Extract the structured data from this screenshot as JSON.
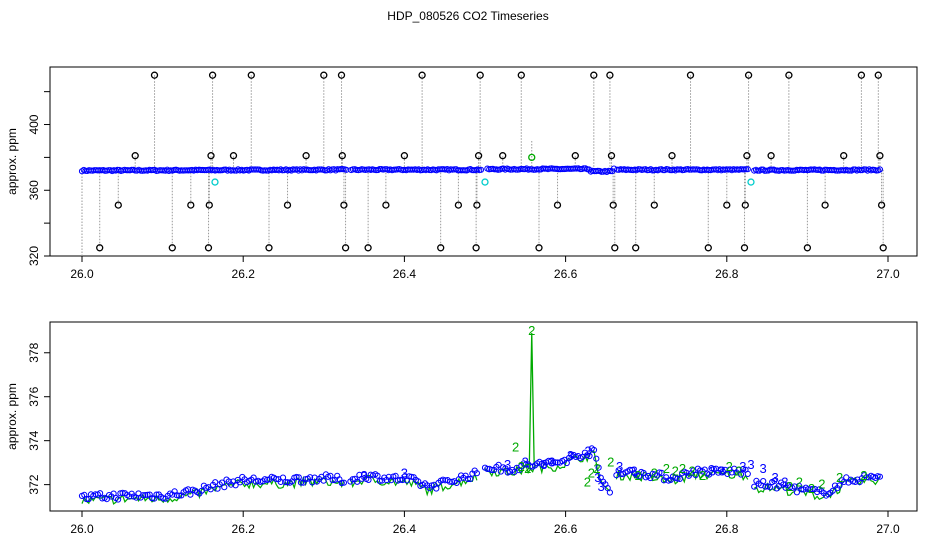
{
  "title": "HDP_080526  CO2 Timeseries",
  "colors": {
    "series_blue": "#0000ff",
    "series_green": "#00aa00",
    "cyan": "#00cccc",
    "black": "#000000",
    "drop_line": "#999999"
  },
  "chart_data": [
    {
      "type": "scatter",
      "ylabel": "approx. ppm",
      "xlim": [
        26.0,
        27.0
      ],
      "ylim": [
        320,
        435
      ],
      "x_ticks": [
        "26.0",
        "26.2",
        "26.4",
        "26.6",
        "26.8",
        "27.0"
      ],
      "y_ticks": [
        "320",
        "360",
        "400"
      ],
      "y_tick_values": [
        320,
        340,
        360,
        380,
        400,
        420
      ],
      "baseline_segments": [
        {
          "x0": 26.0,
          "x1": 26.328,
          "y0": 372,
          "y1": 372.5
        },
        {
          "x0": 26.334,
          "x1": 26.495,
          "y0": 372.5,
          "y1": 372.5
        },
        {
          "x0": 26.503,
          "x1": 26.66,
          "y0": 372.8,
          "y1": 373
        },
        {
          "x0": 26.664,
          "x1": 26.826,
          "y0": 372.5,
          "y1": 372.5
        },
        {
          "x0": 26.834,
          "x1": 26.99,
          "y0": 372.2,
          "y1": 372.4
        }
      ],
      "cyan_points": [
        {
          "x": 26.165,
          "y": 365
        },
        {
          "x": 26.5,
          "y": 365
        },
        {
          "x": 26.83,
          "y": 365
        }
      ],
      "green_points": [
        {
          "x": 26.558,
          "y": 380
        }
      ],
      "outliers": [
        {
          "x": 26.022,
          "y": 325
        },
        {
          "x": 26.045,
          "y": 351
        },
        {
          "x": 26.066,
          "y": 381
        },
        {
          "x": 26.09,
          "y": 430
        },
        {
          "x": 26.112,
          "y": 325
        },
        {
          "x": 26.135,
          "y": 351
        },
        {
          "x": 26.157,
          "y": 325
        },
        {
          "x": 26.158,
          "y": 351
        },
        {
          "x": 26.16,
          "y": 381
        },
        {
          "x": 26.162,
          "y": 430
        },
        {
          "x": 26.188,
          "y": 381
        },
        {
          "x": 26.21,
          "y": 430
        },
        {
          "x": 26.232,
          "y": 325
        },
        {
          "x": 26.255,
          "y": 351
        },
        {
          "x": 26.278,
          "y": 381
        },
        {
          "x": 26.3,
          "y": 430
        },
        {
          "x": 26.322,
          "y": 430
        },
        {
          "x": 26.323,
          "y": 381
        },
        {
          "x": 26.325,
          "y": 351
        },
        {
          "x": 26.327,
          "y": 325
        },
        {
          "x": 26.355,
          "y": 325
        },
        {
          "x": 26.377,
          "y": 351
        },
        {
          "x": 26.4,
          "y": 381
        },
        {
          "x": 26.422,
          "y": 430
        },
        {
          "x": 26.445,
          "y": 325
        },
        {
          "x": 26.467,
          "y": 351
        },
        {
          "x": 26.489,
          "y": 325
        },
        {
          "x": 26.49,
          "y": 351
        },
        {
          "x": 26.492,
          "y": 381
        },
        {
          "x": 26.494,
          "y": 430
        },
        {
          "x": 26.522,
          "y": 381
        },
        {
          "x": 26.545,
          "y": 430
        },
        {
          "x": 26.567,
          "y": 325
        },
        {
          "x": 26.59,
          "y": 351
        },
        {
          "x": 26.612,
          "y": 381
        },
        {
          "x": 26.635,
          "y": 430
        },
        {
          "x": 26.655,
          "y": 430
        },
        {
          "x": 26.657,
          "y": 381
        },
        {
          "x": 26.659,
          "y": 351
        },
        {
          "x": 26.661,
          "y": 325
        },
        {
          "x": 26.687,
          "y": 325
        },
        {
          "x": 26.71,
          "y": 351
        },
        {
          "x": 26.732,
          "y": 381
        },
        {
          "x": 26.755,
          "y": 430
        },
        {
          "x": 26.777,
          "y": 325
        },
        {
          "x": 26.8,
          "y": 351
        },
        {
          "x": 26.822,
          "y": 325
        },
        {
          "x": 26.823,
          "y": 351
        },
        {
          "x": 26.825,
          "y": 381
        },
        {
          "x": 26.827,
          "y": 430
        },
        {
          "x": 26.855,
          "y": 381
        },
        {
          "x": 26.877,
          "y": 430
        },
        {
          "x": 26.9,
          "y": 325
        },
        {
          "x": 26.922,
          "y": 351
        },
        {
          "x": 26.945,
          "y": 381
        },
        {
          "x": 26.967,
          "y": 430
        },
        {
          "x": 26.988,
          "y": 430
        },
        {
          "x": 26.99,
          "y": 381
        },
        {
          "x": 26.992,
          "y": 351
        },
        {
          "x": 26.994,
          "y": 325
        }
      ]
    },
    {
      "type": "scatter",
      "ylabel": "approx. ppm",
      "xlim": [
        26.0,
        27.0
      ],
      "ylim": [
        370.8,
        379.4
      ],
      "x_ticks": [
        "26.0",
        "26.2",
        "26.4",
        "26.6",
        "26.8",
        "27.0"
      ],
      "y_ticks": [
        "372",
        "374",
        "376",
        "378"
      ],
      "y_tick_values": [
        372,
        374,
        376,
        378
      ],
      "segments": [
        {
          "x0": 26.0,
          "x1": 26.325,
          "pts": [
            [
              26.0,
              371.4
            ],
            [
              26.05,
              371.5
            ],
            [
              26.1,
              371.5
            ],
            [
              26.14,
              371.7
            ],
            [
              26.17,
              372.0
            ],
            [
              26.2,
              372.2
            ],
            [
              26.25,
              372.2
            ],
            [
              26.3,
              372.3
            ],
            [
              26.325,
              372.2
            ]
          ]
        },
        {
          "x0": 26.333,
          "x1": 26.49,
          "pts": [
            [
              26.333,
              372.2
            ],
            [
              26.35,
              372.4
            ],
            [
              26.38,
              372.3
            ],
            [
              26.41,
              372.2
            ],
            [
              26.43,
              371.9
            ],
            [
              26.46,
              372.2
            ],
            [
              26.49,
              372.5
            ]
          ]
        },
        {
          "x0": 26.5,
          "x1": 26.655,
          "pts": [
            [
              26.5,
              372.8
            ],
            [
              26.53,
              372.7
            ],
            [
              26.56,
              372.9
            ],
            [
              26.59,
              373.0
            ],
            [
              26.62,
              373.4
            ],
            [
              26.635,
              373.5
            ],
            [
              26.645,
              372.2
            ],
            [
              26.655,
              371.7
            ]
          ]
        },
        {
          "x0": 26.663,
          "x1": 26.826,
          "pts": [
            [
              26.663,
              372.6
            ],
            [
              26.7,
              372.5
            ],
            [
              26.73,
              372.3
            ],
            [
              26.76,
              372.6
            ],
            [
              26.79,
              372.6
            ],
            [
              26.826,
              372.6
            ]
          ]
        },
        {
          "x0": 26.834,
          "x1": 26.99,
          "pts": [
            [
              26.834,
              372.0
            ],
            [
              26.86,
              372.0
            ],
            [
              26.89,
              371.8
            ],
            [
              26.92,
              371.6
            ],
            [
              26.95,
              372.2
            ],
            [
              26.99,
              372.4
            ]
          ]
        }
      ],
      "spike": {
        "x": 26.558,
        "y": 379.0
      },
      "markers": [
        {
          "x": 26.528,
          "y": 372.9,
          "label": "3",
          "series": "3"
        },
        {
          "x": 26.55,
          "y": 373.0,
          "label": "3",
          "series": "3"
        },
        {
          "x": 26.538,
          "y": 373.7,
          "label": "2",
          "series": "2"
        },
        {
          "x": 26.558,
          "y": 379.0,
          "label": "2",
          "series": "2"
        },
        {
          "x": 26.553,
          "y": 372.7,
          "label": "2",
          "series": "2"
        },
        {
          "x": 26.573,
          "y": 372.9,
          "label": "3",
          "series": "3"
        },
        {
          "x": 26.583,
          "y": 373.0,
          "label": "3",
          "series": "3"
        },
        {
          "x": 26.606,
          "y": 373.3,
          "label": "3",
          "series": "3"
        },
        {
          "x": 26.628,
          "y": 373.5,
          "label": "3",
          "series": "3"
        },
        {
          "x": 26.632,
          "y": 372.5,
          "label": "2",
          "series": "2"
        },
        {
          "x": 26.639,
          "y": 372.7,
          "label": "2",
          "series": "2"
        },
        {
          "x": 26.64,
          "y": 372.3,
          "label": "3",
          "series": "3"
        },
        {
          "x": 26.644,
          "y": 371.9,
          "label": "3",
          "series": "3"
        },
        {
          "x": 26.627,
          "y": 372.1,
          "label": "2",
          "series": "2"
        },
        {
          "x": 26.656,
          "y": 373.0,
          "label": "2",
          "series": "2"
        },
        {
          "x": 26.667,
          "y": 372.8,
          "label": "3",
          "series": "3"
        },
        {
          "x": 26.685,
          "y": 372.6,
          "label": "3",
          "series": "3"
        },
        {
          "x": 26.69,
          "y": 372.4,
          "label": "2",
          "series": "2"
        },
        {
          "x": 26.71,
          "y": 372.5,
          "label": "2",
          "series": "2"
        },
        {
          "x": 26.725,
          "y": 372.7,
          "label": "2",
          "series": "2"
        },
        {
          "x": 26.736,
          "y": 372.6,
          "label": "2",
          "series": "2"
        },
        {
          "x": 26.745,
          "y": 372.7,
          "label": "2",
          "series": "2"
        },
        {
          "x": 26.757,
          "y": 372.6,
          "label": "2",
          "series": "2"
        },
        {
          "x": 26.77,
          "y": 372.4,
          "label": "2",
          "series": "2"
        },
        {
          "x": 26.782,
          "y": 372.6,
          "label": "3",
          "series": "3"
        },
        {
          "x": 26.794,
          "y": 372.6,
          "label": "3",
          "series": "3"
        },
        {
          "x": 26.803,
          "y": 372.8,
          "label": "2",
          "series": "2"
        },
        {
          "x": 26.815,
          "y": 372.6,
          "label": "2",
          "series": "2"
        },
        {
          "x": 26.82,
          "y": 372.8,
          "label": "3",
          "series": "3"
        },
        {
          "x": 26.83,
          "y": 372.9,
          "label": "3",
          "series": "3"
        },
        {
          "x": 26.845,
          "y": 372.7,
          "label": "3",
          "series": "3"
        },
        {
          "x": 26.86,
          "y": 372.3,
          "label": "3",
          "series": "3"
        },
        {
          "x": 26.872,
          "y": 372.1,
          "label": "3",
          "series": "3"
        },
        {
          "x": 26.878,
          "y": 371.9,
          "label": "2",
          "series": "2"
        },
        {
          "x": 26.89,
          "y": 372.1,
          "label": "2",
          "series": "2"
        },
        {
          "x": 26.905,
          "y": 371.8,
          "label": "2",
          "series": "2"
        },
        {
          "x": 26.918,
          "y": 372.0,
          "label": "2",
          "series": "2"
        },
        {
          "x": 26.94,
          "y": 372.3,
          "label": "2",
          "series": "2"
        },
        {
          "x": 26.97,
          "y": 372.4,
          "label": "2",
          "series": "2"
        },
        {
          "x": 26.4,
          "y": 372.5,
          "label": "3",
          "series": "3"
        },
        {
          "x": 26.35,
          "y": 372.4,
          "label": "3",
          "series": "3"
        },
        {
          "x": 26.545,
          "y": 372.8,
          "label": "2",
          "series": "2"
        }
      ]
    }
  ]
}
